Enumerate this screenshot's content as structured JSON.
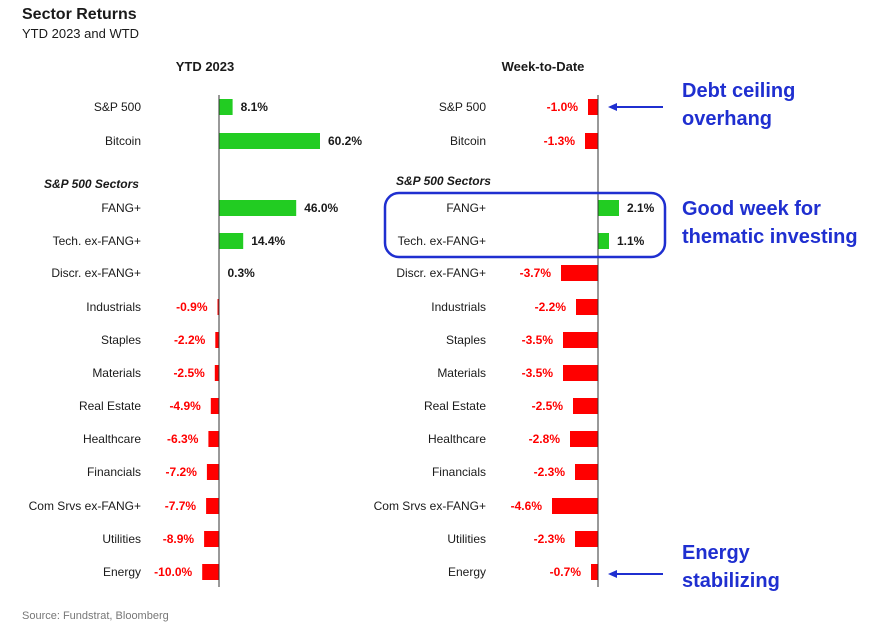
{
  "header": {
    "title": "Sector Returns",
    "subtitle": "YTD 2023 and WTD",
    "source": "Source: Fundstrat, Bloomberg"
  },
  "colors": {
    "positive": "#22cc22",
    "negative": "#ff0000",
    "annotation": "#1f2fd0",
    "axis": "#333333"
  },
  "chart_data": [
    {
      "type": "bar",
      "orientation": "horizontal",
      "title": "YTD 2023",
      "section_label": "S&P 500 Sectors",
      "categories": [
        "S&P 500",
        "Bitcoin",
        "FANG+",
        "Tech. ex-FANG+",
        "Discr. ex-FANG+",
        "Industrials",
        "Staples",
        "Materials",
        "Real Estate",
        "Healthcare",
        "Financials",
        "Com Srvs ex-FANG+",
        "Utilities",
        "Energy"
      ],
      "values": [
        8.1,
        60.2,
        46.0,
        14.4,
        0.3,
        -0.9,
        -2.2,
        -2.5,
        -4.9,
        -6.3,
        -7.2,
        -7.7,
        -8.9,
        -10.0
      ],
      "labels": [
        "8.1%",
        "60.2%",
        "46.0%",
        "14.4%",
        "0.3%",
        "-0.9%",
        "-2.2%",
        "-2.5%",
        "-4.9%",
        "-6.3%",
        "-7.2%",
        "-7.7%",
        "-8.9%",
        "-10.0%"
      ],
      "xlim": [
        -23,
        72
      ]
    },
    {
      "type": "bar",
      "orientation": "horizontal",
      "title": "Week-to-Date",
      "section_label": "S&P 500 Sectors",
      "categories": [
        "S&P 500",
        "Bitcoin",
        "FANG+",
        "Tech. ex-FANG+",
        "Discr. ex-FANG+",
        "Industrials",
        "Staples",
        "Materials",
        "Real Estate",
        "Healthcare",
        "Financials",
        "Com Srvs ex-FANG+",
        "Utilities",
        "Energy"
      ],
      "values": [
        -1.0,
        -1.3,
        2.1,
        1.1,
        -3.7,
        -2.2,
        -3.5,
        -3.5,
        -2.5,
        -2.8,
        -2.3,
        -4.6,
        -2.3,
        -0.7
      ],
      "labels": [
        "-1.0%",
        "-1.3%",
        "2.1%",
        "1.1%",
        "-3.7%",
        "-2.2%",
        "-3.5%",
        "-3.5%",
        "-2.5%",
        "-2.8%",
        "-2.3%",
        "-4.6%",
        "-2.3%",
        "-0.7%"
      ],
      "xlim": [
        -10,
        6
      ]
    }
  ],
  "annotations": [
    {
      "lines": [
        "Debt ceiling",
        "overhang"
      ]
    },
    {
      "lines": [
        "Good week for",
        "thematic investing"
      ]
    },
    {
      "lines": [
        "Energy",
        "stabilizing"
      ]
    }
  ]
}
